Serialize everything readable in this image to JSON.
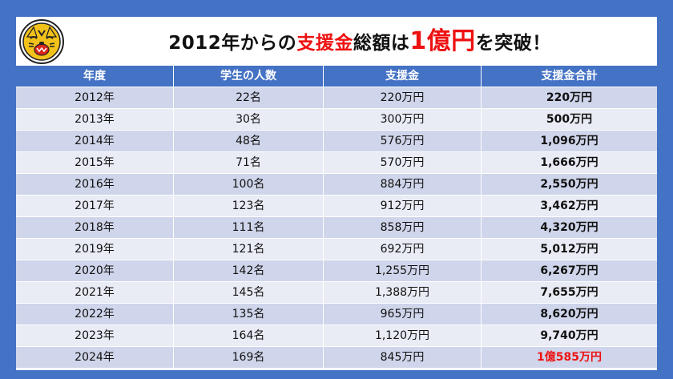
{
  "title": {
    "part1": "2012年からの",
    "part2": "支援金",
    "part3": "総額は",
    "part4": "1億円",
    "part5": "を突破！"
  },
  "logo": {
    "icon": "tiger-mascot-icon"
  },
  "colors": {
    "background": "#4472c4",
    "header_row": "#4472c4",
    "row_odd": "#cfd5ea",
    "row_even": "#e9ebf5",
    "accent_red": "#ee1111"
  },
  "table": {
    "headers": [
      "年度",
      "学生の人数",
      "支援金",
      "支援金合計"
    ],
    "rows": [
      {
        "year": "2012年",
        "students": "22名",
        "amount": "220万円",
        "total": "220万円"
      },
      {
        "year": "2013年",
        "students": "30名",
        "amount": "300万円",
        "total": "500万円"
      },
      {
        "year": "2014年",
        "students": "48名",
        "amount": "576万円",
        "total": "1,096万円"
      },
      {
        "year": "2015年",
        "students": "71名",
        "amount": "570万円",
        "total": "1,666万円"
      },
      {
        "year": "2016年",
        "students": "100名",
        "amount": "884万円",
        "total": "2,550万円"
      },
      {
        "year": "2017年",
        "students": "123名",
        "amount": "912万円",
        "total": "3,462万円"
      },
      {
        "year": "2018年",
        "students": "111名",
        "amount": "858万円",
        "total": "4,320万円"
      },
      {
        "year": "2019年",
        "students": "121名",
        "amount": "692万円",
        "total": "5,012万円"
      },
      {
        "year": "2020年",
        "students": "142名",
        "amount": "1,255万円",
        "total": "6,267万円"
      },
      {
        "year": "2021年",
        "students": "145名",
        "amount": "1,388万円",
        "total": "7,655万円"
      },
      {
        "year": "2022年",
        "students": "135名",
        "amount": "965万円",
        "total": "8,620万円"
      },
      {
        "year": "2023年",
        "students": "164名",
        "amount": "1,120万円",
        "total": "9,740万円"
      },
      {
        "year": "2024年",
        "students": "169名",
        "amount": "845万円",
        "total": "1億585万円"
      }
    ]
  }
}
